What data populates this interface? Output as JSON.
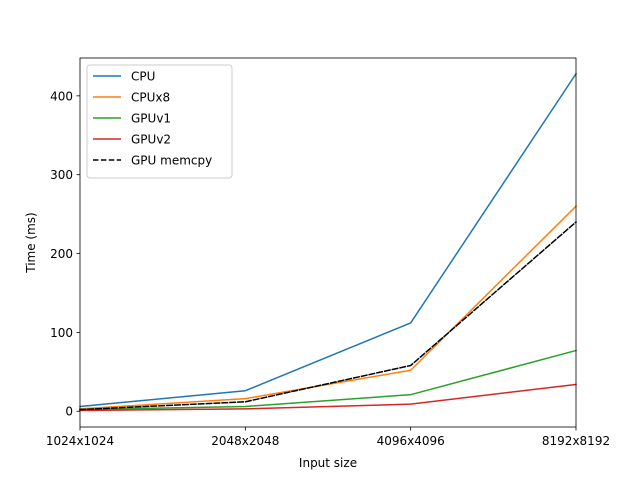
{
  "chart_data": {
    "type": "line",
    "categories": [
      "1024x1024",
      "2048x2048",
      "4096x4096",
      "8192x8192"
    ],
    "xlabel": "Input size",
    "ylabel": "Time (ms)",
    "ylim": [
      -20,
      448
    ],
    "yticks": [
      0,
      100,
      200,
      300,
      400
    ],
    "grid": false,
    "legend_position": "top-left",
    "series": [
      {
        "name": "CPU",
        "color": "#1f77b4",
        "dashed": false,
        "values": [
          6,
          26,
          112,
          428
        ]
      },
      {
        "name": "CPUx8",
        "color": "#ff7f0e",
        "dashed": false,
        "values": [
          3,
          16,
          52,
          260
        ]
      },
      {
        "name": "GPUv1",
        "color": "#2ca02c",
        "dashed": false,
        "values": [
          2,
          6,
          21,
          77
        ]
      },
      {
        "name": "GPUv2",
        "color": "#d62728",
        "dashed": false,
        "values": [
          1,
          3,
          9,
          34
        ]
      },
      {
        "name": "GPU memcpy",
        "color": "#000000",
        "dashed": true,
        "values": [
          2,
          12,
          58,
          240
        ]
      }
    ]
  }
}
